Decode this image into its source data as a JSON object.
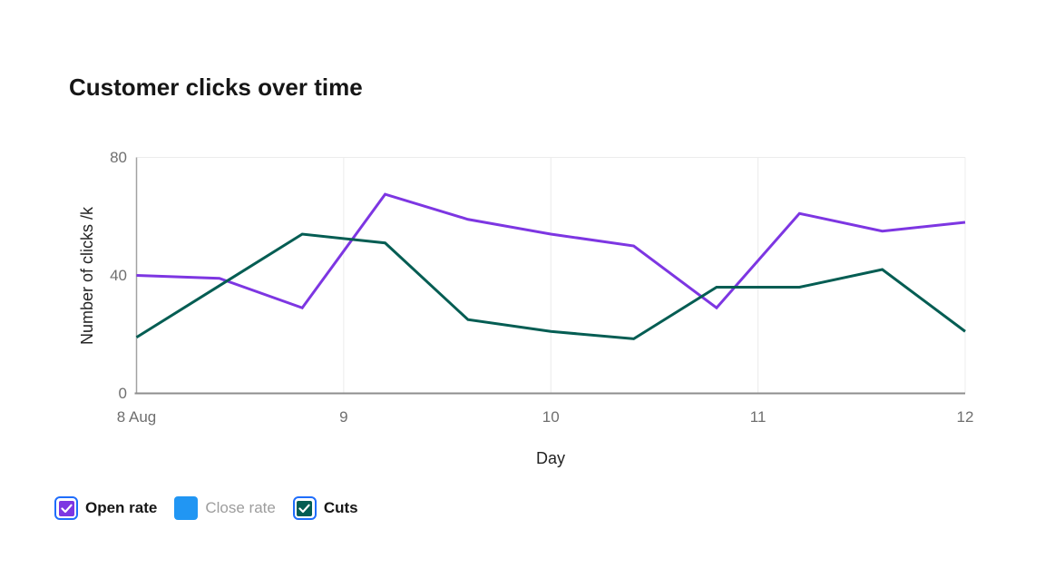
{
  "title": "Customer clicks over time",
  "colors": {
    "background": "#ffffff",
    "title_text": "#161616",
    "axis_title_text": "#232323",
    "tick_text": "#6f6f6f",
    "gridline": "#ececec",
    "axis_line_left": "#a2a2a2",
    "axis_line_bottom": "#8d8d8d",
    "checkbox_ring": "#1f6dfb",
    "legend_text_enabled": "#161616",
    "legend_text_disabled": "#9d9d9d"
  },
  "chart_data": {
    "type": "line",
    "title": "Customer clicks over time",
    "xlabel": "Day",
    "ylabel": "Number of clicks /k",
    "xlim": [
      8,
      12
    ],
    "ylim": [
      0,
      80
    ],
    "y_ticks": [
      0,
      40,
      80
    ],
    "x_ticks": [
      {
        "value": 8,
        "label": "8 Aug"
      },
      {
        "value": 9,
        "label": "9"
      },
      {
        "value": 10,
        "label": "10"
      },
      {
        "value": 11,
        "label": "11"
      },
      {
        "value": 12,
        "label": "12"
      }
    ],
    "grid": "vertical gridlines at x ticks 9-12 plus top border line; no horizontal gridline at 40",
    "legend_position": "bottom-left",
    "legend_style": "checkboxes",
    "series": [
      {
        "name": "Open rate",
        "color": "#7d36e2",
        "checked": true,
        "visible": true,
        "points": [
          {
            "x": 8.0,
            "y": 40
          },
          {
            "x": 8.4,
            "y": 39
          },
          {
            "x": 8.8,
            "y": 29
          },
          {
            "x": 9.2,
            "y": 67.5
          },
          {
            "x": 9.6,
            "y": 59
          },
          {
            "x": 10.0,
            "y": 54
          },
          {
            "x": 10.4,
            "y": 50
          },
          {
            "x": 10.8,
            "y": 29
          },
          {
            "x": 11.2,
            "y": 61
          },
          {
            "x": 11.6,
            "y": 55
          },
          {
            "x": 12.0,
            "y": 58
          }
        ]
      },
      {
        "name": "Close rate",
        "color": "#2196f3",
        "checked": false,
        "visible": false,
        "points": []
      },
      {
        "name": "Cuts",
        "color": "#045d53",
        "checked": true,
        "visible": true,
        "points": [
          {
            "x": 8.0,
            "y": 19
          },
          {
            "x": 8.8,
            "y": 54
          },
          {
            "x": 9.2,
            "y": 51
          },
          {
            "x": 9.6,
            "y": 25
          },
          {
            "x": 10.0,
            "y": 21
          },
          {
            "x": 10.4,
            "y": 18.5
          },
          {
            "x": 10.8,
            "y": 36
          },
          {
            "x": 11.2,
            "y": 36
          },
          {
            "x": 11.6,
            "y": 42
          },
          {
            "x": 12.0,
            "y": 21
          }
        ]
      }
    ]
  }
}
